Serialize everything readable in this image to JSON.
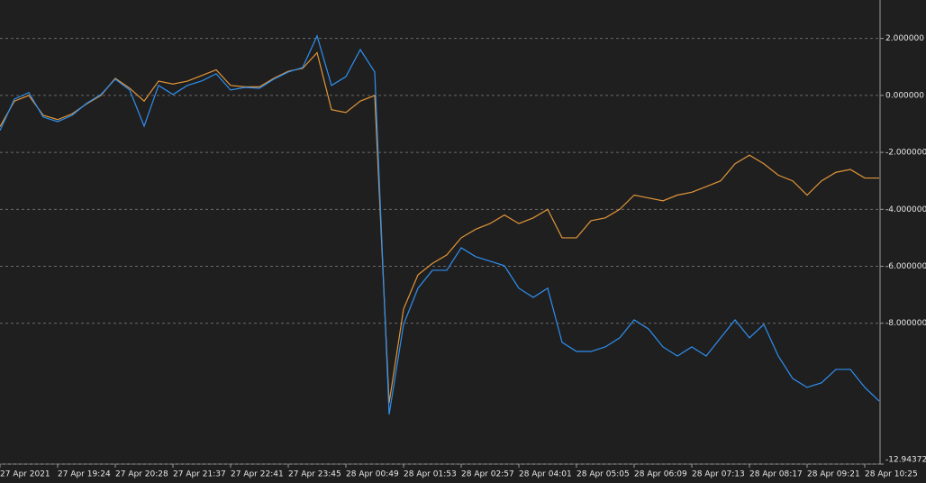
{
  "chart_data": {
    "type": "line",
    "categories": [
      "27 Apr 2021",
      null,
      null,
      null,
      "27 Apr 19:24",
      null,
      null,
      null,
      "27 Apr 20:28",
      null,
      null,
      null,
      "27 Apr 21:37",
      null,
      null,
      null,
      "27 Apr 22:41",
      null,
      null,
      null,
      "27 Apr 23:45",
      null,
      null,
      null,
      "28 Apr 00:49",
      null,
      null,
      null,
      "28 Apr 01:53",
      null,
      null,
      null,
      "28 Apr 02:57",
      null,
      null,
      null,
      "28 Apr 04:01",
      null,
      null,
      null,
      "28 Apr 05:05",
      null,
      null,
      null,
      "28 Apr 06:09",
      null,
      null,
      null,
      "28 Apr 07:13",
      null,
      null,
      null,
      "28 Apr 08:17",
      null,
      null,
      null,
      "28 Apr 09:21",
      null,
      null,
      null,
      "28 Apr 10:25",
      null
    ],
    "series": [
      {
        "color": "#2f8ff0",
        "values": [
          -1.23,
          -0.13,
          0.1,
          -0.76,
          -0.92,
          -0.7,
          -0.28,
          0.03,
          0.57,
          0.19,
          -1.08,
          0.35,
          0.03,
          0.35,
          0.51,
          0.76,
          0.19,
          0.28,
          0.25,
          0.57,
          0.82,
          0.98,
          2.09,
          0.35,
          0.66,
          1.61,
          0.82,
          -11.2,
          -8.04,
          -6.77,
          -6.14,
          -6.14,
          -5.35,
          -5.66,
          -5.82,
          -5.98,
          -6.77,
          -7.09,
          -6.77,
          -8.67,
          -8.99,
          -8.99,
          -8.83,
          -8.51,
          -7.88,
          -8.2,
          -8.83,
          -9.15,
          -8.83,
          -9.15,
          -8.51,
          -7.88,
          -8.51,
          -8.04,
          -9.15,
          -9.94,
          -10.25,
          -10.09,
          -9.62,
          -9.62,
          -10.25,
          -10.73
        ]
      },
      {
        "color": "#e0953a",
        "values": [
          -1.1,
          -0.2,
          0.0,
          -0.7,
          -0.85,
          -0.65,
          -0.3,
          0.0,
          0.6,
          0.25,
          -0.2,
          0.5,
          0.4,
          0.5,
          0.7,
          0.9,
          0.35,
          0.3,
          0.3,
          0.6,
          0.85,
          0.95,
          1.5,
          -0.5,
          -0.6,
          -0.2,
          0.0,
          -10.8,
          -7.5,
          -6.3,
          -5.9,
          -5.6,
          -5.0,
          -4.7,
          -4.5,
          -4.2,
          -4.5,
          -4.3,
          -4.0,
          -5.0,
          -5.0,
          -4.4,
          -4.3,
          -4.0,
          -3.5,
          -3.6,
          -3.7,
          -3.5,
          -3.4,
          -3.2,
          -3.0,
          -2.4,
          -2.1,
          -2.4,
          -2.8,
          -3.0,
          -3.5,
          -3.0,
          -2.7,
          -2.6,
          -2.9,
          -2.9
        ]
      }
    ],
    "ylim": [
      -12.943726,
      3.35
    ],
    "yticks": [
      {
        "value": 2,
        "label": "2.000000"
      },
      {
        "value": 0,
        "label": "0.000000"
      },
      {
        "value": -2,
        "label": "-2.000000"
      },
      {
        "value": -4,
        "label": "-4.000000"
      },
      {
        "value": -6,
        "label": "-6.000000"
      },
      {
        "value": -8,
        "label": "-8.000000"
      },
      {
        "value": -12.943726,
        "label": "-12.943726"
      }
    ],
    "grid": true
  }
}
